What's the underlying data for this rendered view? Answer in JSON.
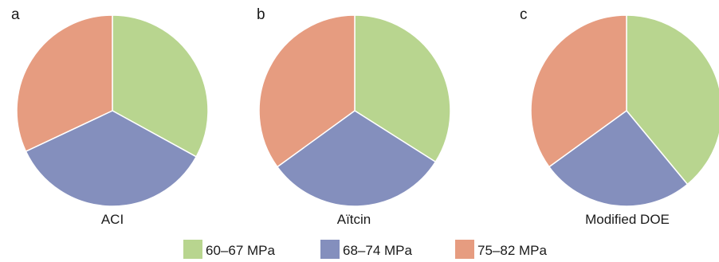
{
  "colors": {
    "series": [
      "#b8d58f",
      "#848fbd",
      "#e69c80"
    ],
    "slice_border": "#ffffff"
  },
  "legend": {
    "placement": "bottom",
    "items": [
      "60–67 MPa",
      "68–74 MPa",
      "75–82 MPa"
    ]
  },
  "chart_data": [
    {
      "type": "pie",
      "panel_label": "a",
      "caption": "ACI",
      "categories": [
        "60–67 MPa",
        "68–74 MPa",
        "75–82 MPa"
      ],
      "values": [
        33,
        35,
        32
      ]
    },
    {
      "type": "pie",
      "panel_label": "b",
      "caption": "Aïtcin",
      "categories": [
        "60–67 MPa",
        "68–74 MPa",
        "75–82 MPa"
      ],
      "values": [
        34,
        31,
        35
      ]
    },
    {
      "type": "pie",
      "panel_label": "c",
      "caption": "Modified DOE",
      "categories": [
        "60–67 MPa",
        "68–74 MPa",
        "75–82 MPa"
      ],
      "values": [
        39,
        26,
        35
      ]
    }
  ]
}
